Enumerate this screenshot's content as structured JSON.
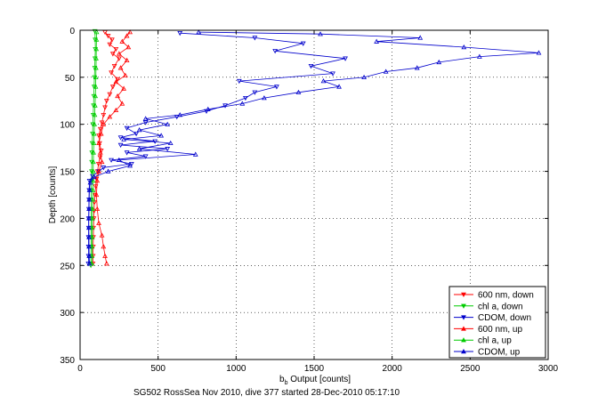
{
  "chart_data": {
    "type": "scatter",
    "orientation": "depth-profile (y axis reversed, depth increases downward)",
    "xlabel_main": "b",
    "xlabel_sub": "b",
    "xlabel_rest": " Output [counts]",
    "ylabel": "Depth [counts]",
    "caption": "SG502 RossSea Nov 2010, dive 377 started 28-Dec-2010 05:17:10",
    "xlim": [
      0,
      3000
    ],
    "ylim": [
      0,
      350
    ],
    "y_reversed": true,
    "grid": true,
    "grid_style": "dotted",
    "legend_position": "bottom-right",
    "xticks": [
      0,
      500,
      1000,
      1500,
      2000,
      2500,
      3000
    ],
    "xtick_labels": [
      "0",
      "500",
      "1000",
      "1500",
      "2000",
      "2500",
      "3000"
    ],
    "yticks": [
      0,
      50,
      100,
      150,
      200,
      250,
      300,
      350
    ],
    "ytick_labels": [
      "0",
      "50",
      "100",
      "150",
      "200",
      "250",
      "300",
      "350"
    ],
    "series": [
      {
        "name": "600 nm, down",
        "color": "#ff0000",
        "marker": "triangle-down",
        "line": true,
        "points": [
          [
            160,
            2
          ],
          [
            180,
            6
          ],
          [
            205,
            10
          ],
          [
            190,
            15
          ],
          [
            230,
            20
          ],
          [
            210,
            25
          ],
          [
            250,
            30
          ],
          [
            220,
            38
          ],
          [
            200,
            45
          ],
          [
            240,
            52
          ],
          [
            210,
            60
          ],
          [
            190,
            68
          ],
          [
            170,
            75
          ],
          [
            160,
            82
          ],
          [
            150,
            90
          ],
          [
            140,
            98
          ],
          [
            130,
            105
          ],
          [
            120,
            112
          ],
          [
            125,
            120
          ],
          [
            135,
            128
          ],
          [
            128,
            135
          ],
          [
            118,
            142
          ],
          [
            112,
            150
          ],
          [
            105,
            158
          ],
          [
            100,
            166
          ],
          [
            96,
            175
          ],
          [
            92,
            183
          ],
          [
            90,
            192
          ],
          [
            88,
            200
          ],
          [
            86,
            210
          ],
          [
            85,
            220
          ],
          [
            84,
            230
          ],
          [
            83,
            240
          ],
          [
            82,
            248
          ]
        ]
      },
      {
        "name": "chl a, down",
        "color": "#00cc00",
        "marker": "triangle-down",
        "line": true,
        "points": [
          [
            95,
            1
          ],
          [
            97,
            10
          ],
          [
            98,
            20
          ],
          [
            96,
            30
          ],
          [
            94,
            40
          ],
          [
            92,
            50
          ],
          [
            90,
            60
          ],
          [
            88,
            70
          ],
          [
            86,
            80
          ],
          [
            84,
            90
          ],
          [
            82,
            100
          ],
          [
            80,
            110
          ],
          [
            78,
            120
          ],
          [
            76,
            130
          ],
          [
            75,
            140
          ],
          [
            74,
            150
          ],
          [
            73,
            160
          ],
          [
            72,
            170
          ],
          [
            72,
            180
          ],
          [
            71,
            190
          ],
          [
            71,
            200
          ],
          [
            70,
            210
          ],
          [
            70,
            220
          ],
          [
            70,
            230
          ],
          [
            69,
            240
          ],
          [
            69,
            250
          ]
        ]
      },
      {
        "name": "CDOM, down",
        "color": "#0000cc",
        "marker": "triangle-down",
        "line": true,
        "points": [
          [
            640,
            3
          ],
          [
            1120,
            8
          ],
          [
            1430,
            14
          ],
          [
            1250,
            22
          ],
          [
            1700,
            30
          ],
          [
            1480,
            38
          ],
          [
            1620,
            46
          ],
          [
            1020,
            54
          ],
          [
            1260,
            60
          ],
          [
            1120,
            66
          ],
          [
            1060,
            72
          ],
          [
            930,
            80
          ],
          [
            810,
            86
          ],
          [
            620,
            92
          ],
          [
            420,
            98
          ],
          [
            300,
            104
          ],
          [
            360,
            110
          ],
          [
            260,
            114
          ],
          [
            480,
            118
          ],
          [
            260,
            122
          ],
          [
            560,
            126
          ],
          [
            300,
            130
          ],
          [
            420,
            134
          ],
          [
            200,
            138
          ],
          [
            330,
            142
          ],
          [
            150,
            146
          ],
          [
            120,
            150
          ],
          [
            80,
            155
          ],
          [
            60,
            160
          ],
          [
            58,
            170
          ],
          [
            57,
            180
          ],
          [
            56,
            190
          ],
          [
            55,
            200
          ],
          [
            55,
            210
          ],
          [
            54,
            220
          ],
          [
            54,
            230
          ],
          [
            54,
            240
          ],
          [
            53,
            248
          ]
        ]
      },
      {
        "name": "600 nm, up",
        "color": "#ff0000",
        "marker": "triangle-up",
        "line": true,
        "points": [
          [
            170,
            248
          ],
          [
            160,
            240
          ],
          [
            150,
            230
          ],
          [
            140,
            218
          ],
          [
            120,
            205
          ],
          [
            110,
            190
          ],
          [
            105,
            175
          ],
          [
            110,
            160
          ],
          [
            120,
            150
          ],
          [
            140,
            140
          ],
          [
            130,
            130
          ],
          [
            120,
            120
          ],
          [
            135,
            110
          ],
          [
            150,
            100
          ],
          [
            190,
            92
          ],
          [
            230,
            85
          ],
          [
            270,
            78
          ],
          [
            240,
            70
          ],
          [
            280,
            62
          ],
          [
            230,
            55
          ],
          [
            290,
            48
          ],
          [
            260,
            40
          ],
          [
            300,
            32
          ],
          [
            250,
            25
          ],
          [
            310,
            18
          ],
          [
            270,
            12
          ],
          [
            300,
            6
          ],
          [
            320,
            2
          ]
        ]
      },
      {
        "name": "chl a, up",
        "color": "#00cc00",
        "marker": "triangle-up",
        "line": true,
        "points": [
          [
            75,
            248
          ],
          [
            76,
            240
          ],
          [
            77,
            230
          ],
          [
            78,
            220
          ],
          [
            78,
            210
          ],
          [
            79,
            200
          ],
          [
            80,
            190
          ],
          [
            81,
            180
          ],
          [
            82,
            170
          ],
          [
            83,
            160
          ],
          [
            84,
            150
          ],
          [
            85,
            140
          ],
          [
            86,
            130
          ],
          [
            88,
            120
          ],
          [
            90,
            110
          ],
          [
            92,
            100
          ],
          [
            94,
            90
          ],
          [
            96,
            80
          ],
          [
            98,
            70
          ],
          [
            100,
            60
          ],
          [
            101,
            50
          ],
          [
            102,
            40
          ],
          [
            103,
            30
          ],
          [
            104,
            20
          ],
          [
            105,
            10
          ],
          [
            106,
            2
          ]
        ]
      },
      {
        "name": "CDOM, up",
        "color": "#0000cc",
        "marker": "triangle-up",
        "line": true,
        "points": [
          [
            60,
            248
          ],
          [
            58,
            240
          ],
          [
            57,
            230
          ],
          [
            57,
            220
          ],
          [
            56,
            210
          ],
          [
            56,
            200
          ],
          [
            57,
            190
          ],
          [
            58,
            180
          ],
          [
            60,
            170
          ],
          [
            65,
            162
          ],
          [
            90,
            156
          ],
          [
            180,
            150
          ],
          [
            320,
            144
          ],
          [
            250,
            138
          ],
          [
            740,
            132
          ],
          [
            380,
            126
          ],
          [
            580,
            120
          ],
          [
            280,
            116
          ],
          [
            520,
            112
          ],
          [
            380,
            106
          ],
          [
            560,
            100
          ],
          [
            420,
            94
          ],
          [
            640,
            90
          ],
          [
            820,
            84
          ],
          [
            1040,
            78
          ],
          [
            1180,
            72
          ],
          [
            1400,
            66
          ],
          [
            1660,
            60
          ],
          [
            1560,
            54
          ],
          [
            1820,
            50
          ],
          [
            1960,
            44
          ],
          [
            2160,
            40
          ],
          [
            2300,
            34
          ],
          [
            2560,
            28
          ],
          [
            2940,
            24
          ],
          [
            2460,
            18
          ],
          [
            1900,
            12
          ],
          [
            2180,
            8
          ],
          [
            1540,
            4
          ],
          [
            760,
            2
          ]
        ]
      }
    ]
  }
}
